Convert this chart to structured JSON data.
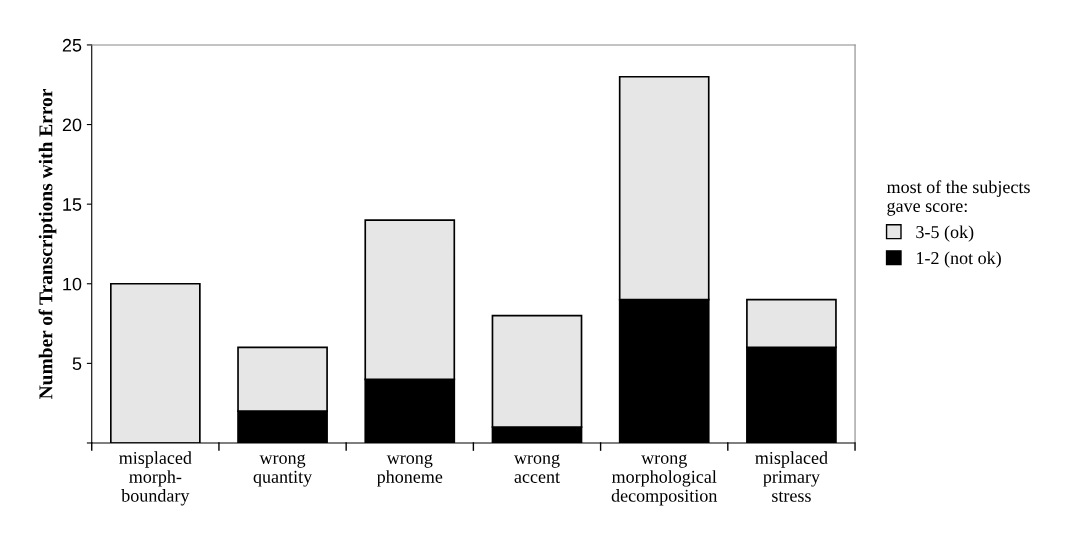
{
  "chart_data": {
    "type": "bar",
    "stacked": true,
    "ylabel": "Number of Transcriptions with Error",
    "categories": [
      "misplaced\nmorph-\nboundary",
      "wrong\nquantity",
      "wrong\nphoneme",
      "wrong\naccent",
      "wrong\nmorphological\ndecomposition",
      "misplaced\nprimary\nstress"
    ],
    "series": [
      {
        "name": "1-2 (not ok)",
        "color": "#000000",
        "values": [
          0,
          2,
          4,
          1,
          9,
          6
        ]
      },
      {
        "name": "3-5 (ok)",
        "color": "#e6e6e6",
        "values": [
          10,
          4,
          10,
          7,
          14,
          3
        ]
      }
    ],
    "ylim": [
      0,
      25
    ],
    "yticks": [
      {
        "value": 0,
        "label": null
      },
      5,
      10,
      15,
      20,
      25
    ],
    "legend": "right",
    "legend_title": "most of the subjects\ngave score:",
    "grid": false
  }
}
